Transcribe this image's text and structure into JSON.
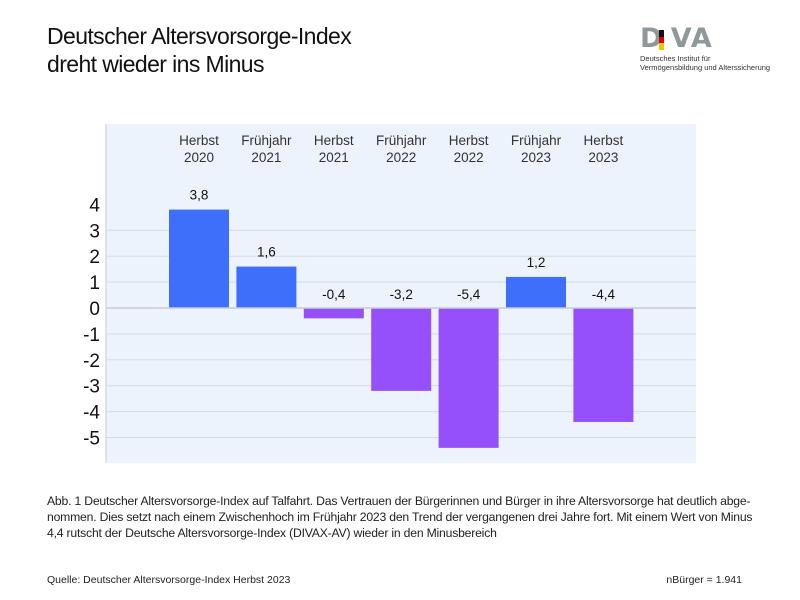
{
  "header": {
    "title_line1": "Deutscher Altersvorsorge-Index",
    "title_line2": "dreht wieder ins Minus"
  },
  "logo": {
    "wordmark": "DIVA",
    "subtitle_line1": "Deutsches Institut für",
    "subtitle_line2": "Vermögensbildung und Alterssicherung"
  },
  "chart_data": {
    "type": "bar",
    "categories": [
      [
        "Herbst",
        "2020"
      ],
      [
        "Frühjahr",
        "2021"
      ],
      [
        "Herbst",
        "2021"
      ],
      [
        "Frühjahr",
        "2022"
      ],
      [
        "Herbst",
        "2022"
      ],
      [
        "Frühjahr",
        "2023"
      ],
      [
        "Herbst",
        "2023"
      ]
    ],
    "values": [
      3.8,
      1.6,
      -0.4,
      -3.2,
      -5.4,
      1.2,
      -4.4
    ],
    "value_labels": [
      "3,8",
      "1,6",
      "-0,4",
      "-3,2",
      "-5,4",
      "1,2",
      "-4,4"
    ],
    "yticks": [
      4,
      3,
      2,
      1,
      0,
      -1,
      -2,
      -3,
      -4,
      -5
    ],
    "ylim": [
      -6,
      7.2
    ],
    "grid": true,
    "xlabel": "",
    "ylabel": "",
    "colors": {
      "positive": "#3d6ffb",
      "negative": "#9650fb",
      "background": "#edf3fc",
      "grid": "#d3dbe5"
    }
  },
  "caption": "Abb. 1 Deutscher Altersvorsorge-Index auf Talfahrt. Das Vertrauen der Bürgerinnen und Bürger in ihre Altersvorsorge hat deutlich abge-nommen. Dies setzt nach einem Zwischenhoch im Frühjahr 2023 den Trend der vergangenen drei Jahre fort. Mit einem Wert von Minus 4,4 rutscht der Deutsche Altersvorsorge-Index (DIVAX-AV) wieder in den Minusbereich",
  "footer": {
    "source": "Quelle: Deutscher Altersvorsorge-Index Herbst 2023",
    "sample": "nBürger = 1.941"
  }
}
